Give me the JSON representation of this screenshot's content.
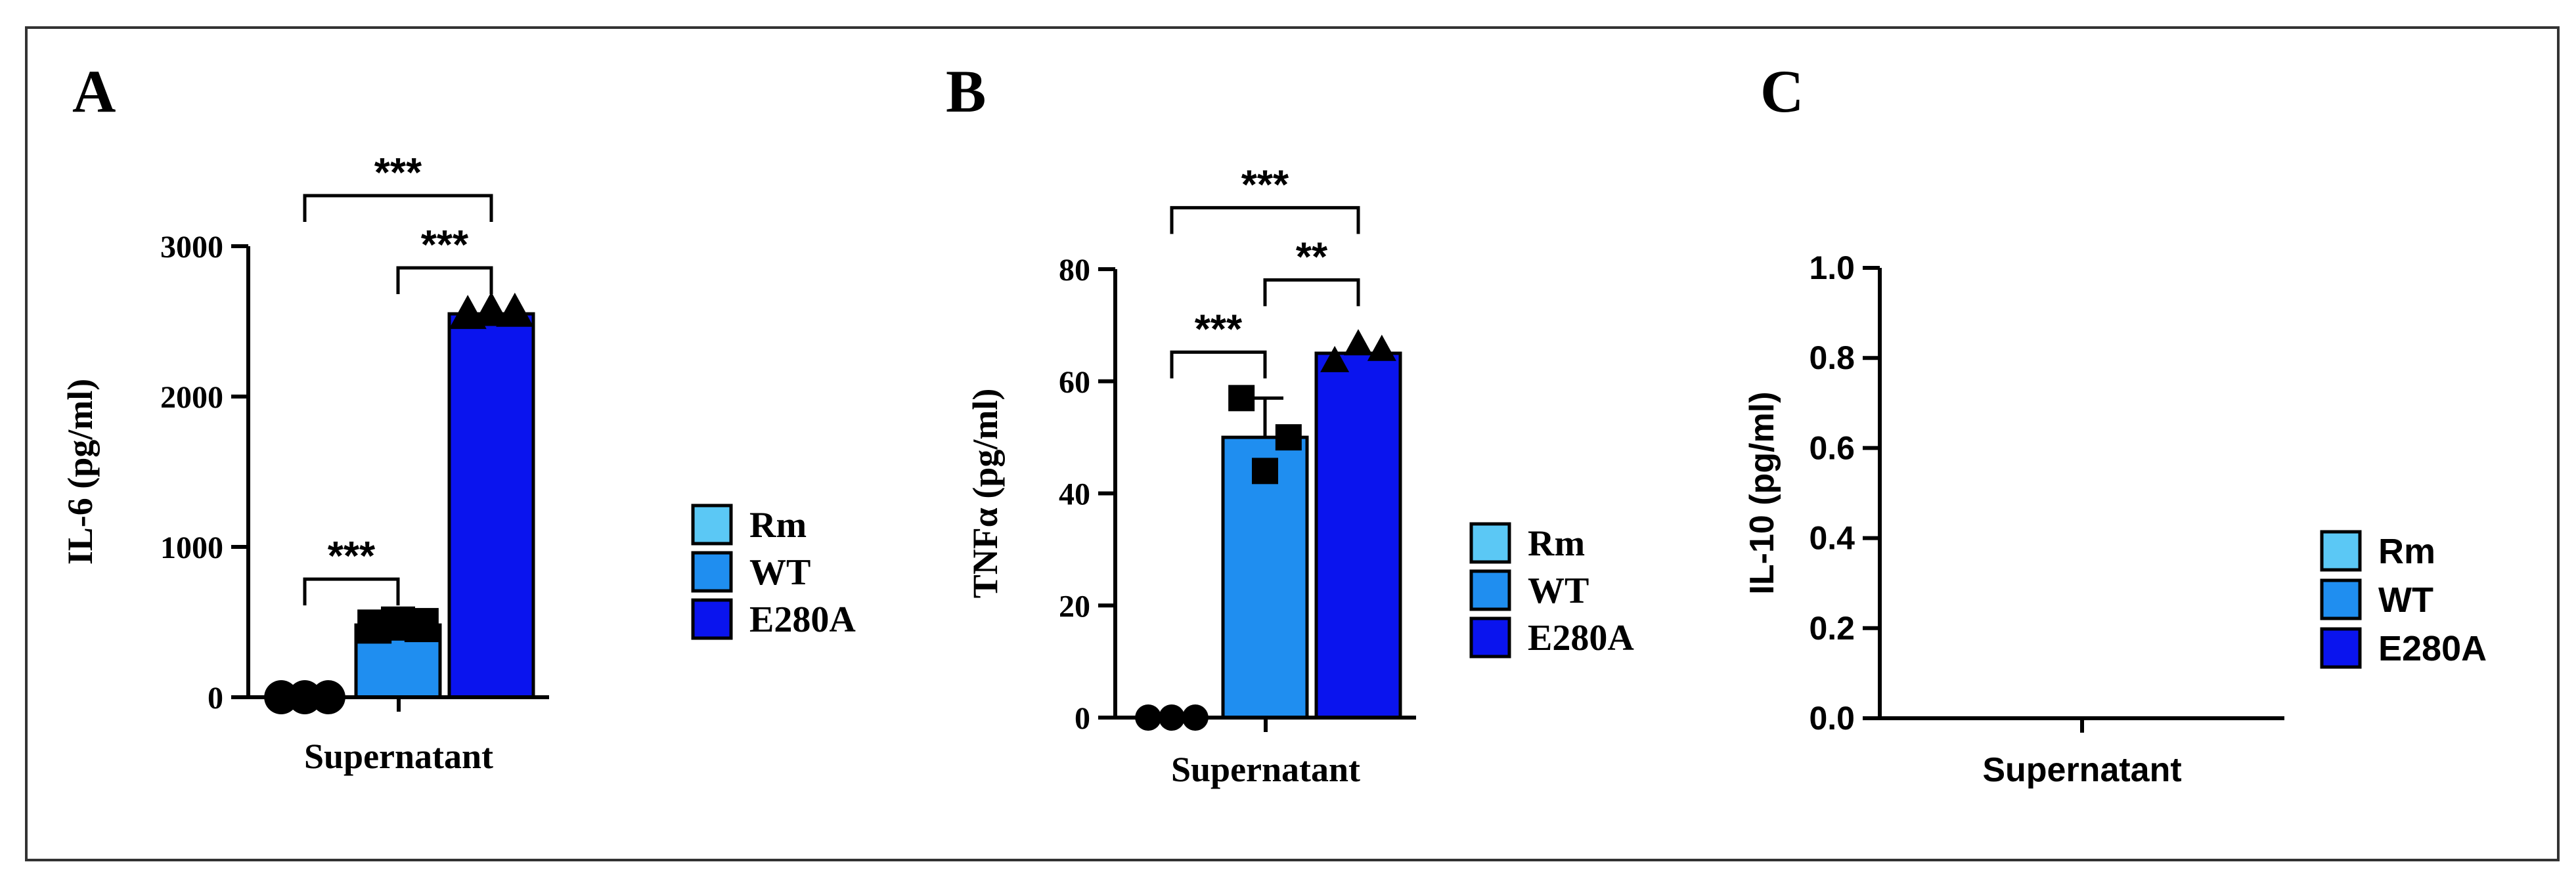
{
  "colors": {
    "Rm": "#5bc8f5",
    "WT": "#1f8ef0",
    "E280A": "#0a14ee",
    "axis": "#000000",
    "frame": "#333333"
  },
  "chart_data": [
    {
      "panel": "A",
      "type": "bar",
      "ylabel": "IL-6 (pg/ml)",
      "xlabel": "Supernatant",
      "ylim": [
        0,
        3000
      ],
      "yticks": [
        "0",
        "1000",
        "2000",
        "3000"
      ],
      "grid": false,
      "legend_position": "right",
      "series": [
        {
          "name": "Rm",
          "value": 0,
          "points": [
            0,
            0,
            0
          ],
          "marker": "circle"
        },
        {
          "name": "WT",
          "value": 480,
          "points": [
            470,
            490,
            480
          ],
          "marker": "square"
        },
        {
          "name": "E280A",
          "value": 2550,
          "points": [
            2540,
            2560,
            2555
          ],
          "marker": "triangle"
        }
      ],
      "significance": [
        {
          "from": "Rm",
          "to": "WT",
          "label": "***"
        },
        {
          "from": "WT",
          "to": "E280A",
          "label": "***"
        },
        {
          "from": "Rm",
          "to": "E280A",
          "label": "***"
        }
      ]
    },
    {
      "panel": "B",
      "type": "bar",
      "ylabel": "TNFα (pg/ml)",
      "xlabel": "Supernatant",
      "ylim": [
        0,
        80
      ],
      "yticks": [
        "0",
        "20",
        "40",
        "60",
        "80"
      ],
      "grid": false,
      "legend_position": "right",
      "series": [
        {
          "name": "Rm",
          "value": 0,
          "points": [
            0,
            0,
            0
          ],
          "marker": "circle"
        },
        {
          "name": "WT",
          "value": 50,
          "points": [
            57,
            44,
            50
          ],
          "marker": "square",
          "error": 7
        },
        {
          "name": "E280A",
          "value": 65,
          "points": [
            63.5,
            66.5,
            65.5
          ],
          "marker": "triangle"
        }
      ],
      "significance": [
        {
          "from": "Rm",
          "to": "WT",
          "label": "***"
        },
        {
          "from": "WT",
          "to": "E280A",
          "label": "**"
        },
        {
          "from": "Rm",
          "to": "E280A",
          "label": "***"
        }
      ]
    },
    {
      "panel": "C",
      "type": "bar",
      "ylabel": "IL-10 (pg/ml)",
      "xlabel": "Supernatant",
      "ylim": [
        0,
        1.0
      ],
      "yticks": [
        "0.0",
        "0.2",
        "0.4",
        "0.6",
        "0.8",
        "1.0"
      ],
      "grid": false,
      "legend_position": "right",
      "series": [
        {
          "name": "Rm",
          "value": 0,
          "points": []
        },
        {
          "name": "WT",
          "value": 0,
          "points": []
        },
        {
          "name": "E280A",
          "value": 0,
          "points": []
        }
      ],
      "significance": []
    }
  ]
}
